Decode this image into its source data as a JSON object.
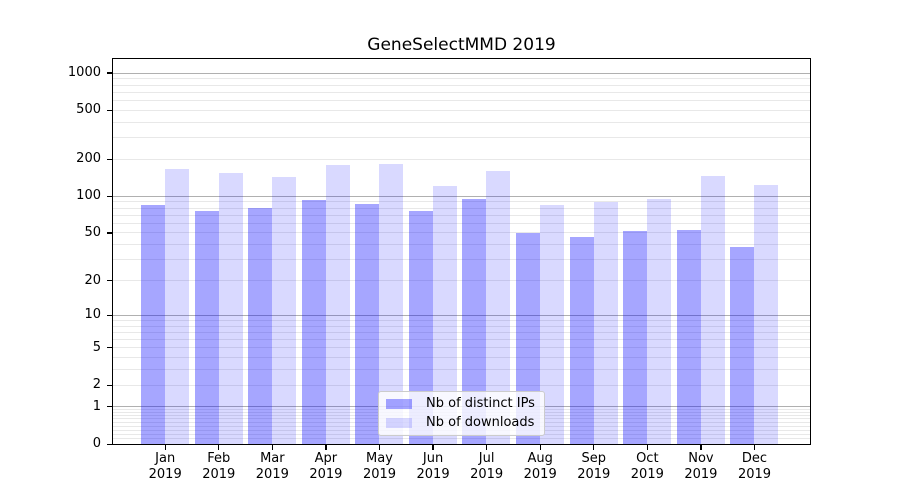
{
  "chart_data": {
    "type": "bar",
    "title": "GeneSelectMMD 2019",
    "categories": [
      "Jan",
      "Feb",
      "Mar",
      "Apr",
      "May",
      "Jun",
      "Jul",
      "Aug",
      "Sep",
      "Oct",
      "Nov",
      "Dec"
    ],
    "x_tick_second_line": "2019",
    "series": [
      {
        "name": "Nb of distinct IPs",
        "color": "#0000FF59",
        "values": [
          85,
          76,
          80,
          93,
          87,
          75,
          94,
          50,
          46,
          52,
          53,
          38
        ]
      },
      {
        "name": "Nb of downloads",
        "color": "#0000FF26",
        "values": [
          168,
          155,
          144,
          180,
          183,
          121,
          160,
          85,
          90,
          94,
          146,
          123
        ]
      }
    ],
    "y_scale": "log1p",
    "y_tick_values": [
      0,
      1,
      2,
      5,
      10,
      20,
      50,
      100,
      200,
      500,
      1000
    ],
    "ylim": [
      0,
      1300
    ],
    "grid": true,
    "legend_position": "lower center",
    "colors": {
      "major_grid": "#b0b0b0",
      "minor_grid": "#e8e8e8",
      "axis": "#000000",
      "text": "#000000",
      "legend_border": "#cccccc"
    }
  }
}
